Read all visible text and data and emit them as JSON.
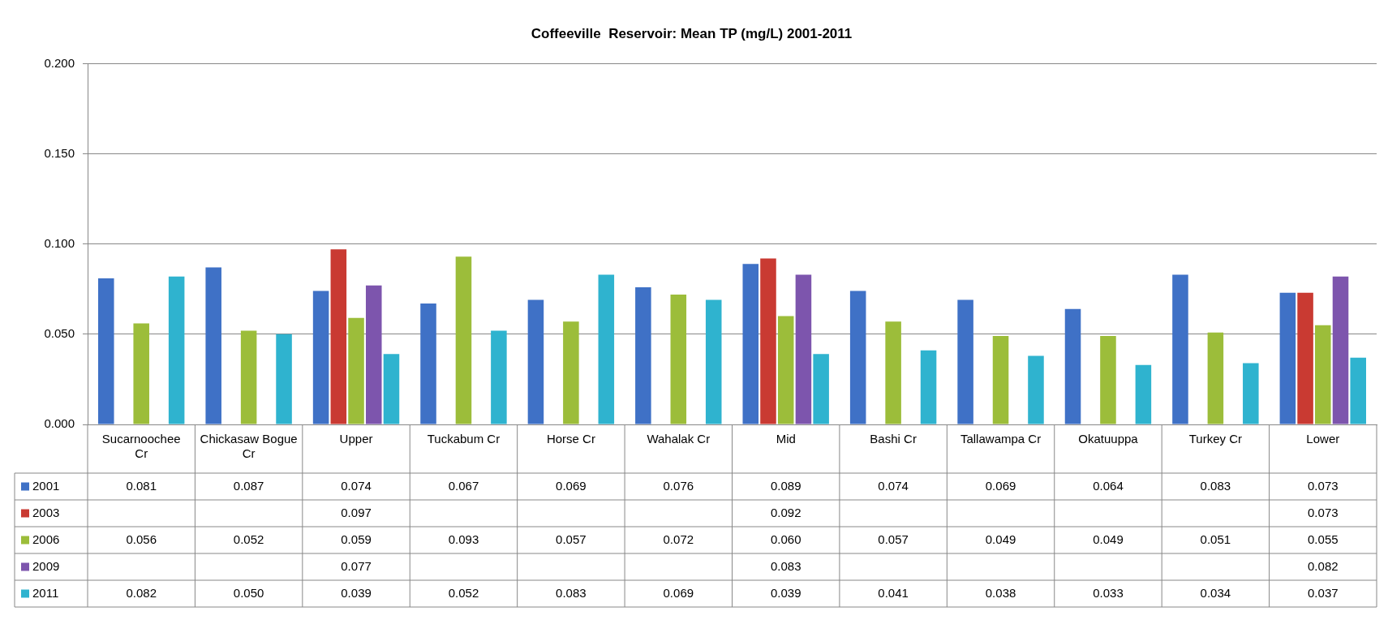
{
  "chart_data": {
    "type": "bar",
    "title": "Coffeeville  Reservoir: Mean TP (mg/L) 2001-2011",
    "categories": [
      "Sucarnoochee Cr",
      "Chickasaw Bogue Cr",
      "Upper",
      "Tuckabum Cr",
      "Horse Cr",
      "Wahalak Cr",
      "Mid",
      "Bashi Cr",
      "Tallawampa Cr",
      "Okatuuppa",
      "Turkey Cr",
      "Lower"
    ],
    "series": [
      {
        "name": "2001",
        "color": "#3f71c6",
        "values": [
          0.081,
          0.087,
          0.074,
          0.067,
          0.069,
          0.076,
          0.089,
          0.074,
          0.069,
          0.064,
          0.083,
          0.073
        ],
        "value_labels": [
          "0.081",
          "0.087",
          "0.074",
          "0.067",
          "0.069",
          "0.076",
          "0.089",
          "0.074",
          "0.069",
          "0.064",
          "0.083",
          "0.073"
        ]
      },
      {
        "name": "2003",
        "color": "#c93a32",
        "values": [
          null,
          null,
          0.097,
          null,
          null,
          null,
          0.092,
          null,
          null,
          null,
          null,
          0.073
        ],
        "value_labels": [
          null,
          null,
          "0.097",
          null,
          null,
          null,
          "0.092",
          null,
          null,
          null,
          null,
          "0.073"
        ]
      },
      {
        "name": "2006",
        "color": "#9cbd3a",
        "values": [
          0.056,
          0.052,
          0.059,
          0.093,
          0.057,
          0.072,
          0.06,
          0.057,
          0.049,
          0.049,
          0.051,
          0.055
        ],
        "value_labels": [
          "0.056",
          "0.052",
          "0.059",
          "0.093",
          "0.057",
          "0.072",
          "0.060",
          "0.057",
          "0.049",
          "0.049",
          "0.051",
          "0.055"
        ]
      },
      {
        "name": "2009",
        "color": "#7d55ad",
        "values": [
          null,
          null,
          0.077,
          null,
          null,
          null,
          0.083,
          null,
          null,
          null,
          null,
          0.082
        ],
        "value_labels": [
          null,
          null,
          "0.077",
          null,
          null,
          null,
          "0.083",
          null,
          null,
          null,
          null,
          "0.082"
        ]
      },
      {
        "name": "2011",
        "color": "#2fb3cf",
        "values": [
          0.082,
          0.05,
          0.039,
          0.052,
          0.083,
          0.069,
          0.039,
          0.041,
          0.038,
          0.033,
          0.034,
          0.037
        ],
        "value_labels": [
          "0.082",
          "0.050",
          "0.039",
          "0.052",
          "0.083",
          "0.069",
          "0.039",
          "0.041",
          "0.038",
          "0.033",
          "0.034",
          "0.037"
        ]
      }
    ],
    "ylim": [
      0,
      0.2
    ],
    "yticks": [
      {
        "value": 0,
        "label": "0.000"
      },
      {
        "value": 0.05,
        "label": "0.050"
      },
      {
        "value": 0.1,
        "label": "0.100"
      },
      {
        "value": 0.15,
        "label": "0.150"
      },
      {
        "value": 0.2,
        "label": "0.200"
      }
    ],
    "grid": "y",
    "legend": "bottom"
  }
}
